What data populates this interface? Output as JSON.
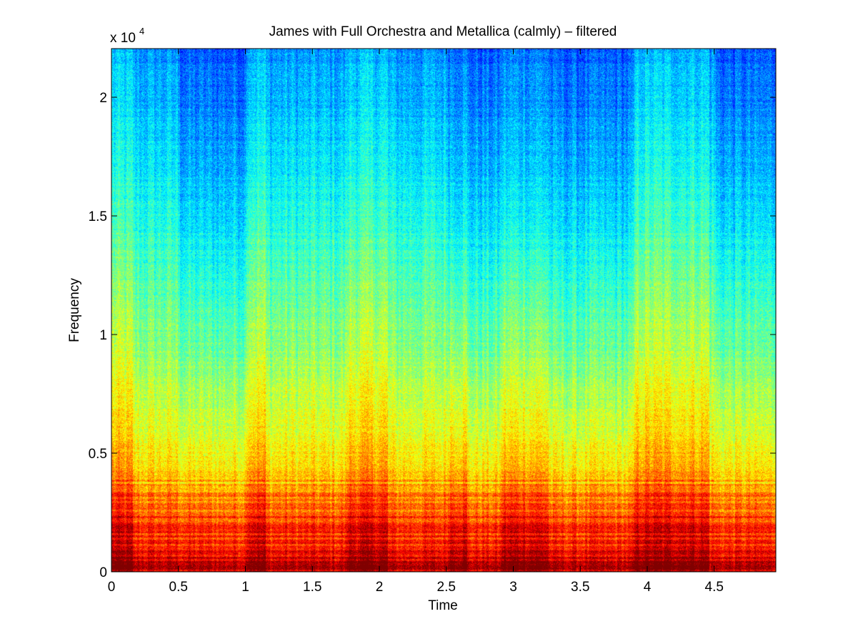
{
  "chart_data": {
    "type": "heatmap",
    "subtype": "spectrogram",
    "title": "James with Full Orchestra and Metallica (calmly) – filtered",
    "xlabel": "Time",
    "ylabel": "Frequency",
    "y_exponent_label": "x 10",
    "y_exponent_power": "4",
    "xlim": [
      0,
      4.96
    ],
    "ylim": [
      0,
      22050
    ],
    "x_ticks": [
      0,
      0.5,
      1,
      1.5,
      2,
      2.5,
      3,
      3.5,
      4,
      4.5
    ],
    "x_tick_labels": [
      "0",
      "0.5",
      "1",
      "1.5",
      "2",
      "2.5",
      "3",
      "3.5",
      "4",
      "4.5"
    ],
    "y_ticks": [
      0,
      5000,
      10000,
      15000,
      20000
    ],
    "y_tick_labels": [
      "0",
      "0.5",
      "1",
      "1.5",
      "2"
    ],
    "colormap": "jet",
    "color_range_shown": [
      "#0060ff",
      "#00ffff",
      "#ffff00",
      "#ff8000",
      "#e00000"
    ],
    "intensity_profile_by_frequency": [
      {
        "freq": 0,
        "level": 0.95
      },
      {
        "freq": 1000,
        "level": 0.85
      },
      {
        "freq": 2500,
        "level": 0.8
      },
      {
        "freq": 4000,
        "level": 0.68
      },
      {
        "freq": 6000,
        "level": 0.6
      },
      {
        "freq": 10000,
        "level": 0.5
      },
      {
        "freq": 15000,
        "level": 0.4
      },
      {
        "freq": 20000,
        "level": 0.3
      },
      {
        "freq": 22050,
        "level": 0.27
      }
    ],
    "loud_time_regions": [
      {
        "start": 0.0,
        "end": 0.15
      },
      {
        "start": 1.0,
        "end": 1.15
      },
      {
        "start": 1.75,
        "end": 2.05
      },
      {
        "start": 2.5,
        "end": 2.65
      },
      {
        "start": 2.9,
        "end": 3.25
      },
      {
        "start": 3.9,
        "end": 4.45
      }
    ],
    "quiet_high_freq_regions": [
      {
        "start": 0.5,
        "end": 1.0
      },
      {
        "start": 2.5,
        "end": 3.9
      },
      {
        "start": 4.5,
        "end": 4.96
      }
    ],
    "grid": false,
    "legend": "none"
  }
}
